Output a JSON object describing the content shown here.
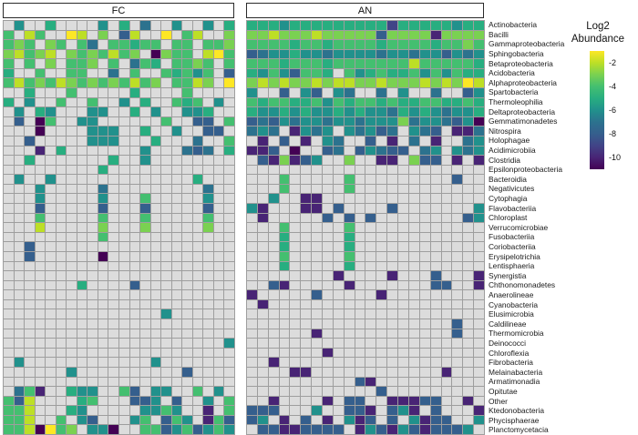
{
  "chart_data": {
    "type": "heatmap",
    "description": "Two-panel taxonomic abundance heatmap (samples as columns, bacterial classes as rows), viridis colormap of Log2 Abundance; grey cells are missing values",
    "value_label": "Log2 Abundance",
    "row_labels": [
      "Actinobacteria",
      "Bacilli",
      "Gammaproteobacteria",
      "Sphingobacteria",
      "Betaproteobacteria",
      "Acidobacteria",
      "Alphaproteobacteria",
      "Spartobacteria",
      "Thermoleophilia",
      "Deltaproteobacteria",
      "Gemmatimonadetes",
      "Nitrospira",
      "Holophagae",
      "Acidimicrobiia",
      "Clostridia",
      "Epsilonproteobacteria",
      "Bacteroidia",
      "Negativicutes",
      "Cytophagia",
      "Flavobacteriia",
      "Chloroplast",
      "Verrucomicrobiae",
      "Fusobacteriia",
      "Coriobacteriia",
      "Erysipelotrichia",
      "Lentisphaeria",
      "Synergistia",
      "Chthonomonadetes",
      "Anaerolineae",
      "Cyanobacteria",
      "Elusimicrobia",
      "Caldilineae",
      "Thermomicrobia",
      "Deinococci",
      "Chloroflexia",
      "Fibrobacteria",
      "Melainabacteria",
      "Armatimonadia",
      "Opitutae",
      "Other",
      "Ktedonobacteria",
      "Phycisphaerae",
      "Planctomycetacia"
    ],
    "cell_code_log2": {
      "a": -1,
      "b": -2,
      "c": -3,
      "d": -4,
      "e": -5,
      "f": -6,
      "g": -7,
      "h": -8,
      "i": -9,
      "j": -10,
      "k": -11,
      ".": null
    },
    "palette": {
      "a": "#fde725",
      "b": "#bddf26",
      "c": "#7ad151",
      "d": "#44bf70",
      "e": "#28ae80",
      "f": "#21918c",
      "g": "#2c728e",
      "h": "#355f8d",
      "i": "#414487",
      "j": "#482475",
      "k": "#440154",
      ".": "#dcdcdc"
    },
    "missing_color": "#dcdcdc",
    "panels": [
      {
        "id": "fc",
        "label": "FC",
        "n_cols": 22,
        "rows": [
          ".f..e....f.e.g..f..f.e",
          "d.bd..ab.c.hb..a.db..c",
          "dcd.cd.dg.ddedd.dd.ddc",
          "cbdcb.cdcdbdc.kcdd.bad",
          "d.d.c.ddc.d.gde.ddcd.d",
          "e..d..dd..g.d..dedfd.h",
          "dbdcdbcdcdcdbdc.ddbc.a",
          "..e...d.....e....d....",
          "e.f..d..d..f.e..ded.f.",
          ".f.ef...ff..e.f..ffe..",
          ".h.kd..ff......d..hh.d",
          "...k....fff..e..f..hh.",
          "..h.....fff...e...g..d",
          "...j.e.......f...ghg.e",
          "..e.......e..f........",
          ".........e............",
          ".f..f.............e...",
          "...f.....g.........g..",
          "...f.....f...d.....f..",
          "...h.....h...h.....h..",
          "...d.....d...d.....d..",
          "...b.....c...c.....c..",
          ".........d............",
          "..h...................",
          "..h......k............",
          "......................",
          "......................",
          ".......e....h.........",
          "......................",
          "......................",
          "...............f......",
          "......................",
          "......................",
          ".....................f",
          "......................",
          ".f............f.......",
          "......f..........h....",
          "......................",
          ".gdj..eff..dh.ff..d.f.",
          "dhb....ed...hhf.h..f.d",
          "ddb...ef.....ffdf..j.d",
          "ddb..d.fh...fd.hdf.jdh",
          "ddbkadc.ffk..ddhfdhfdf"
        ]
      },
      {
        "id": "an",
        "label": "AN",
        "n_cols": 22,
        "rows": [
          "eeefeeeeeeeeeieeeeefee",
          "ccbcccbccccchccccjcccc",
          "ddddeddeddddeddddeddcd",
          "hgffeffgffffgffgffhfgf",
          "dddedddedddddddbddddde",
          "efdfhdde.dfedeedfdfdee",
          "cbcbccbcbbccbcccbcbcab",
          "f..h.fh.fg..g.f..g..hf",
          "deddeedfdeddedeeddeede",
          "effefeffefeffgefefgffe",
          "hghfgffgffgfffcgffghfk",
          "gfg.jfgf.fgfhg.fgh.jjg",
          ".j.h.j.fg..h.j.g.j..gf",
          "jjh.k..hg.hfghh.gf.fgf",
          ".hjcjhf..c..jj.chh.j.j",
          "......................",
          "...d.....d.........h..",
          "...d.....d............",
          "..f..jj...............",
          "fj...jj.h....h.......f",
          ".j.....h.h.h........hf",
          "...d.....d............",
          "...e.....e............",
          "...e.....e............",
          "...d.....d............",
          "...e.....e............",
          "........j....j...h...j",
          "..hj.....j.......hh..j",
          "j.....h.....j.........",
          ".j....................",
          "......................",
          "...................h..",
          "......j............h..",
          "......................",
          ".......j..............",
          "..j...................",
          "....jj............j...",
          "..........hj..........",
          "............h.........",
          "..j....j.hh..jjjhh..j.",
          "hhh...f..hhj.hfj.h...j",
          "hf.j.h.j.fjh.h.fjhh..f",
          ".hhjjhhhh.jfhjfhjhhhf."
        ]
      }
    ],
    "legend": {
      "title": [
        "Log2",
        "Abundance"
      ],
      "domain": [
        -11,
        -1
      ],
      "ticks": [
        -2,
        -4,
        -6,
        -8,
        -10
      ],
      "gradient_bottom_to_top": [
        "#440154",
        "#482475",
        "#414487",
        "#355f8d",
        "#2c728e",
        "#21918c",
        "#28ae80",
        "#44bf70",
        "#7ad151",
        "#bddf26",
        "#fde725"
      ]
    }
  }
}
